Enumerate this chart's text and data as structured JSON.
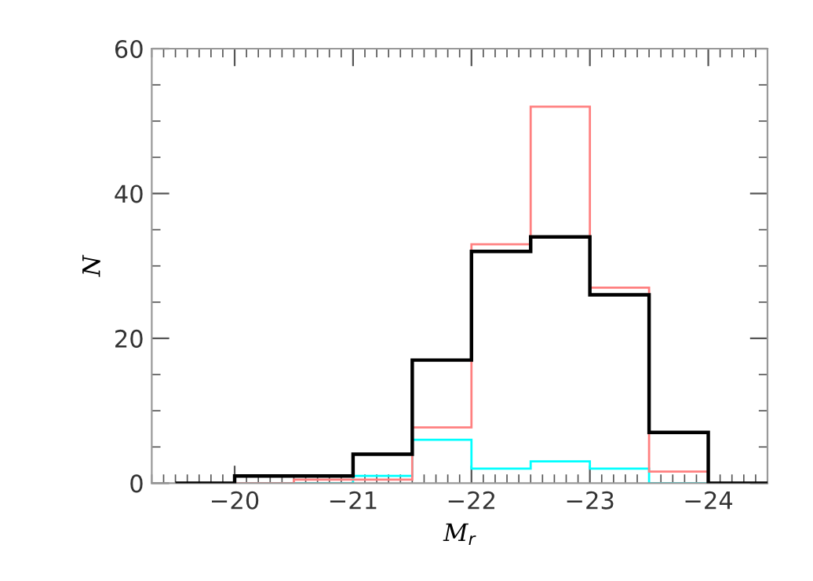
{
  "chart_data": {
    "type": "histogram",
    "xlabel": "M$_{r}$",
    "ylabel": "N",
    "bins": [
      -19.5,
      -20,
      -20.5,
      -21,
      -21.5,
      -22,
      -22.5,
      -23,
      -23.5,
      -24,
      -24.5
    ],
    "series": [
      {
        "color": "#000000",
        "values": [
          0,
          1,
          1,
          4,
          17,
          32,
          34,
          26,
          7,
          0
        ]
      },
      {
        "color": "#ff8080",
        "values": [
          0,
          0,
          0.5,
          0.5,
          7.7,
          33,
          52,
          27,
          1.6,
          0
        ]
      },
      {
        "color": "#00ffff",
        "values": [
          0,
          0,
          0,
          1,
          6,
          2,
          3,
          2,
          0,
          0
        ]
      }
    ],
    "xlim": [
      -19.3,
      -24.5
    ],
    "ylim": [
      0,
      60
    ],
    "xticks": [
      {
        "value": -20,
        "label": "−20"
      },
      {
        "value": -21,
        "label": "−21"
      },
      {
        "value": -22,
        "label": "−22"
      },
      {
        "value": -23,
        "label": "−23"
      },
      {
        "value": -24,
        "label": "−24"
      }
    ],
    "yticks": [
      0,
      20,
      40,
      60
    ],
    "grid": false
  }
}
